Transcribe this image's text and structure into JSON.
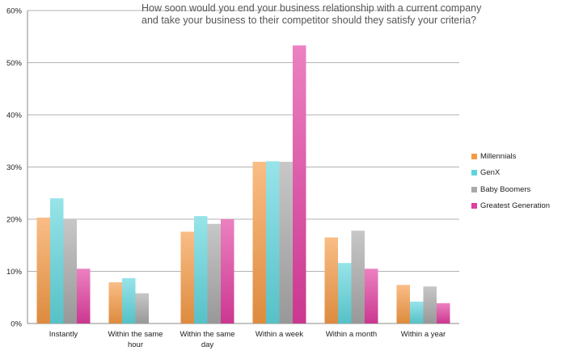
{
  "chart_data": {
    "type": "bar",
    "title": "How soon would you end your business relationship with a current company and take your business to their competitor should they satisfy your criteria?",
    "categories": [
      [
        "Instantly"
      ],
      [
        "Within the same",
        "hour"
      ],
      [
        "Within the same",
        "day"
      ],
      [
        "Within a week"
      ],
      [
        "Within a month"
      ],
      [
        "Within a year"
      ]
    ],
    "series": [
      {
        "name": "Millennials",
        "color": "#f59a45",
        "values": [
          20.3,
          7.9,
          17.6,
          31.0,
          16.5,
          7.4
        ]
      },
      {
        "name": "GenX",
        "color": "#5fd6dd",
        "values": [
          24.0,
          8.7,
          20.6,
          31.1,
          11.6,
          4.2
        ]
      },
      {
        "name": "Baby Boomers",
        "color": "#a9a9a9",
        "values": [
          19.9,
          5.8,
          19.1,
          31.0,
          17.8,
          7.1
        ]
      },
      {
        "name": "Greatest Generation",
        "color": "#e23da0",
        "values": [
          10.5,
          0,
          20.0,
          53.3,
          10.5,
          3.9
        ]
      }
    ],
    "y_ticks": [
      "0%",
      "10%",
      "20%",
      "30%",
      "40%",
      "50%",
      "60%"
    ],
    "ylim": [
      0,
      60
    ],
    "grid": true,
    "legend_position": "right"
  }
}
